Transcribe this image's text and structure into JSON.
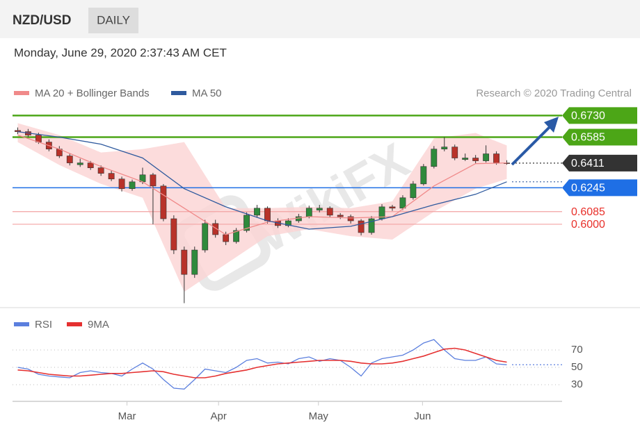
{
  "header": {
    "symbol": "NZD/USD",
    "timeframe": "DAILY",
    "timestamp": "Monday, June 29, 2020 2:37:43 AM CET"
  },
  "watermark": "WikiFX",
  "chart_data": [
    {
      "type": "candlestick",
      "credit": "Research © 2020 Trading Central",
      "up_color": "#2f8a3c",
      "down_color": "#b8322a",
      "xlim": [
        -0.5,
        47.5
      ],
      "ylim": [
        0.544,
        0.676
      ],
      "candles": [
        [
          0.663,
          0.665,
          0.6605,
          0.6622
        ],
        [
          0.6622,
          0.664,
          0.6585,
          0.6599
        ],
        [
          0.6599,
          0.6615,
          0.654,
          0.6552
        ],
        [
          0.6552,
          0.657,
          0.649,
          0.6505
        ],
        [
          0.6505,
          0.6525,
          0.6445,
          0.6459
        ],
        [
          0.6459,
          0.6475,
          0.6395,
          0.6412
        ],
        [
          0.64,
          0.644,
          0.6385,
          0.6412
        ],
        [
          0.6412,
          0.6425,
          0.6365,
          0.6379
        ],
        [
          0.6379,
          0.6395,
          0.6325,
          0.6342
        ],
        [
          0.6342,
          0.636,
          0.629,
          0.6304
        ],
        [
          0.6304,
          0.632,
          0.622,
          0.6239
        ],
        [
          0.6239,
          0.63,
          0.6225,
          0.6285
        ],
        [
          0.6285,
          0.638,
          0.627,
          0.6332
        ],
        [
          0.6332,
          0.6345,
          0.6,
          0.6257
        ],
        [
          0.6257,
          0.627,
          0.602,
          0.6037
        ],
        [
          0.6037,
          0.606,
          0.58,
          0.5827
        ],
        [
          0.5827,
          0.585,
          0.547,
          0.5663
        ],
        [
          0.5663,
          0.585,
          0.564,
          0.5827
        ],
        [
          0.5827,
          0.603,
          0.581,
          0.6005
        ],
        [
          0.6005,
          0.603,
          0.591,
          0.593
        ],
        [
          0.593,
          0.595,
          0.586,
          0.5883
        ],
        [
          0.5883,
          0.5975,
          0.587,
          0.5958
        ],
        [
          0.5958,
          0.608,
          0.5945,
          0.6061
        ],
        [
          0.6061,
          0.613,
          0.6045,
          0.6108
        ],
        [
          0.6108,
          0.612,
          0.6005,
          0.6023
        ],
        [
          0.6023,
          0.604,
          0.5975,
          0.5991
        ],
        [
          0.5991,
          0.604,
          0.598,
          0.6023
        ],
        [
          0.6023,
          0.607,
          0.601,
          0.6051
        ],
        [
          0.6051,
          0.6125,
          0.604,
          0.6108
        ],
        [
          0.6095,
          0.613,
          0.608,
          0.6108
        ],
        [
          0.6108,
          0.612,
          0.6045,
          0.6061
        ],
        [
          0.6061,
          0.6075,
          0.6035,
          0.6051
        ],
        [
          0.6051,
          0.6065,
          0.6005,
          0.6023
        ],
        [
          0.6023,
          0.6035,
          0.5925,
          0.5944
        ],
        [
          0.5944,
          0.6055,
          0.593,
          0.6037
        ],
        [
          0.6037,
          0.6135,
          0.6025,
          0.6117
        ],
        [
          0.6117,
          0.613,
          0.609,
          0.6108
        ],
        [
          0.6108,
          0.6195,
          0.6095,
          0.6178
        ],
        [
          0.6178,
          0.629,
          0.6165,
          0.6271
        ],
        [
          0.6271,
          0.6405,
          0.626,
          0.6388
        ],
        [
          0.6388,
          0.6525,
          0.6375,
          0.6505
        ],
        [
          0.6505,
          0.6585,
          0.649,
          0.6519
        ],
        [
          0.6519,
          0.6535,
          0.643,
          0.6445
        ],
        [
          0.6435,
          0.6475,
          0.6425,
          0.6445
        ],
        [
          0.6445,
          0.6465,
          0.641,
          0.6426
        ],
        [
          0.6426,
          0.653,
          0.6415,
          0.6473
        ],
        [
          0.6473,
          0.649,
          0.64,
          0.6412
        ],
        [
          0.6412,
          0.643,
          0.64,
          0.6411
        ]
      ],
      "series": [
        {
          "name": "MA 20 + Bollinger Bands",
          "color": "#f08a8a",
          "band_color": "#fbd3d3",
          "x": [
            0,
            4,
            8,
            12,
            16,
            20,
            24,
            28,
            32,
            36,
            40,
            44,
            47
          ],
          "values": [
            0.6599,
            0.6505,
            0.6388,
            0.6285,
            0.6108,
            0.593,
            0.6014,
            0.6051,
            0.6042,
            0.6051,
            0.6257,
            0.6407,
            0.6412
          ],
          "upper": [
            0.6679,
            0.6599,
            0.6482,
            0.6505,
            0.6552,
            0.6108,
            0.6108,
            0.6117,
            0.6108,
            0.6154,
            0.6576,
            0.6613,
            0.6529
          ],
          "lower": [
            0.6552,
            0.6398,
            0.6271,
            0.6178,
            0.5546,
            0.5733,
            0.592,
            0.5967,
            0.592,
            0.5897,
            0.6084,
            0.6239,
            0.6304
          ]
        },
        {
          "name": "MA 50",
          "color": "#2f5a9e",
          "x": [
            0,
            4,
            8,
            12,
            16,
            20,
            24,
            28,
            32,
            36,
            40,
            44,
            47
          ],
          "values": [
            0.6622,
            0.6585,
            0.6538,
            0.6445,
            0.6239,
            0.6117,
            0.6023,
            0.5967,
            0.5986,
            0.6051,
            0.6131,
            0.6201,
            0.6285
          ]
        }
      ],
      "levels": [
        {
          "value": 0.673,
          "label": "0.6730",
          "color": "#4ca617",
          "style": "badge"
        },
        {
          "value": 0.6585,
          "label": "0.6585",
          "color": "#4ca617",
          "style": "badge"
        },
        {
          "value": 0.6411,
          "label": "0.6411",
          "color": "#333333",
          "style": "current"
        },
        {
          "value": 0.6245,
          "label": "0.6245",
          "color": "#1f6fe5",
          "style": "badge"
        },
        {
          "value": 0.6085,
          "label": "0.6085",
          "color": "#e8302a",
          "style": "text"
        },
        {
          "value": 0.6,
          "label": "0.6000",
          "color": "#e8302a",
          "style": "text"
        }
      ]
    },
    {
      "type": "line",
      "xlim": [
        -0.5,
        47.5
      ],
      "xticks": [
        {
          "value": 10.5,
          "label": "Mar"
        },
        {
          "value": 19.3,
          "label": "Apr"
        },
        {
          "value": 28.9,
          "label": "May"
        },
        {
          "value": 38.9,
          "label": "Jun"
        }
      ],
      "ylim": [
        10,
        90
      ],
      "yticks": [
        30,
        50,
        70
      ],
      "grid": true,
      "series": [
        {
          "name": "RSI",
          "color": "#5b7fde",
          "values": [
            50,
            48,
            42,
            40,
            39,
            38,
            44,
            46,
            44,
            43,
            40,
            48,
            55,
            48,
            36,
            26,
            25,
            36,
            48,
            46,
            44,
            50,
            58,
            60,
            55,
            56,
            54,
            60,
            62,
            57,
            60,
            58,
            50,
            40,
            55,
            60,
            62,
            64,
            70,
            78,
            82,
            70,
            60,
            58,
            58,
            62,
            54,
            53
          ]
        },
        {
          "name": "9MA",
          "color": "#e53030",
          "values": [
            47,
            46,
            44,
            42,
            41,
            40,
            40,
            41,
            42,
            43,
            43,
            44,
            45,
            46,
            45,
            42,
            40,
            38,
            38,
            40,
            43,
            45,
            47,
            50,
            52,
            54,
            55,
            56,
            57,
            58,
            58,
            58,
            57,
            55,
            54,
            54,
            55,
            57,
            60,
            63,
            67,
            71,
            72,
            70,
            66,
            62,
            58,
            56
          ]
        }
      ]
    }
  ]
}
